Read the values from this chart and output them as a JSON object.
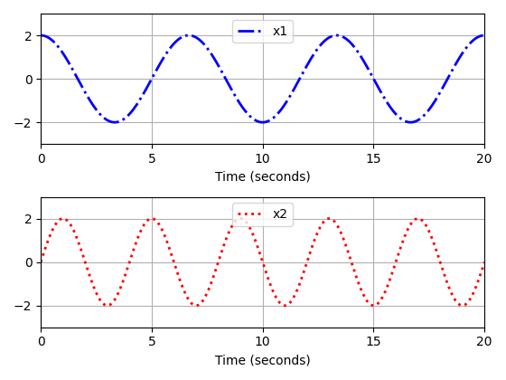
{
  "t_start": 0,
  "t_end": 20,
  "t_points": 1000,
  "x1_amplitude": 2,
  "x1_omega": 0.9424777960769379,
  "x2_amplitude": 2,
  "x2_omega": 1.5707963267948966,
  "x1_label": "x1",
  "x2_label": "x2",
  "xlabel": "Time (seconds)",
  "x1_color": "#0000FF",
  "x2_color": "#FF0000",
  "linestyle1": "-.",
  "linestyle2": ":",
  "linewidth": 2.0,
  "xlim": [
    0,
    20
  ],
  "ylim": [
    -3,
    3
  ],
  "grid": true,
  "xticks": [
    0,
    5,
    10,
    15,
    20
  ],
  "yticks": [
    -2,
    0,
    2
  ],
  "legend_loc": "upper center",
  "figsize": [
    5.6,
    4.2
  ],
  "dpi": 100
}
